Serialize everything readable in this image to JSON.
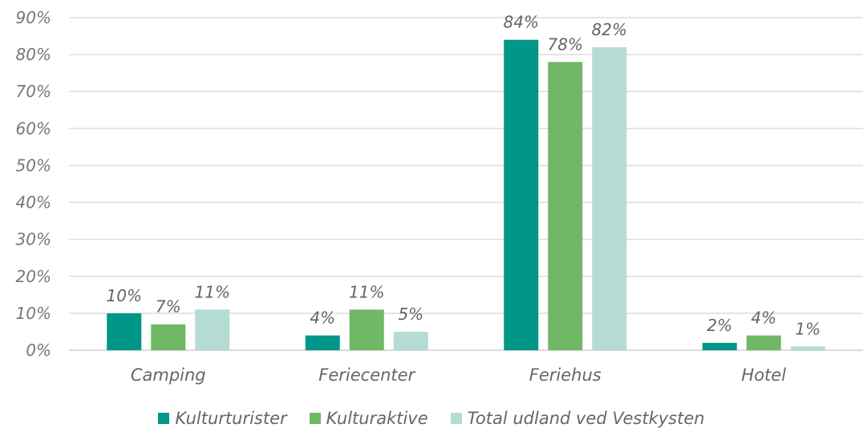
{
  "chart_data": {
    "type": "bar",
    "categories": [
      "Camping",
      "Feriecenter",
      "Feriehus",
      "Hotel"
    ],
    "series": [
      {
        "name": "Kulturturister",
        "color": "#009688",
        "values": [
          10,
          4,
          84,
          2
        ],
        "labels": [
          "10%",
          "4%",
          "84%",
          "2%"
        ]
      },
      {
        "name": "Kulturaktive",
        "color": "#70b866",
        "values": [
          7,
          11,
          78,
          4
        ],
        "labels": [
          "7%",
          "11%",
          "78%",
          "4%"
        ]
      },
      {
        "name": "Total udland ved Vestkysten",
        "color": "#b5dbd5",
        "values": [
          11,
          5,
          82,
          1
        ],
        "labels": [
          "11%",
          "5%",
          "82%",
          "1%"
        ]
      }
    ],
    "ylim": [
      0,
      90
    ],
    "y_ticks": [
      "0%",
      "10%",
      "20%",
      "30%",
      "40%",
      "50%",
      "60%",
      "70%",
      "80%",
      "90%"
    ],
    "grid": true,
    "legend_position": "bottom",
    "xlabel": "",
    "ylabel": ""
  }
}
